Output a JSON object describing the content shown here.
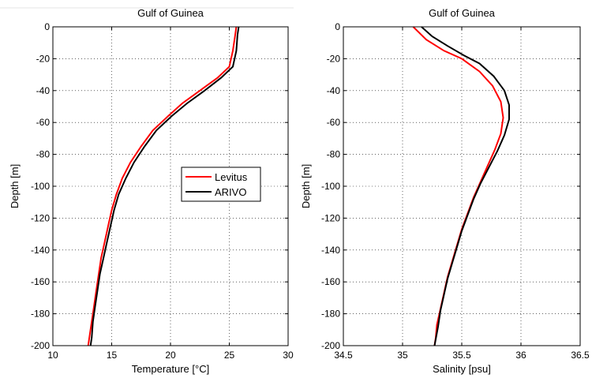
{
  "chart_data": [
    {
      "type": "line",
      "title": "Gulf of Guinea",
      "xlabel": "Temperature [°C]",
      "ylabel": "Depth [m]",
      "xlim": [
        10,
        30
      ],
      "ylim": [
        -200,
        0
      ],
      "xticks": [
        "10",
        "15",
        "20",
        "25",
        "30"
      ],
      "yticks": [
        "0",
        "-20",
        "-40",
        "-60",
        "-80",
        "-100",
        "-120",
        "-140",
        "-160",
        "-180",
        "-200"
      ],
      "grid": true,
      "legend": "center-right",
      "series": [
        {
          "name": "Levitus",
          "color": "#ff0000",
          "points": [
            [
              25.6,
              0
            ],
            [
              25.5,
              -5
            ],
            [
              25.3,
              -15
            ],
            [
              25.0,
              -25
            ],
            [
              24.0,
              -32
            ],
            [
              22.5,
              -40
            ],
            [
              21.0,
              -48
            ],
            [
              19.8,
              -56
            ],
            [
              18.5,
              -65
            ],
            [
              17.5,
              -75
            ],
            [
              16.6,
              -85
            ],
            [
              15.9,
              -95
            ],
            [
              15.4,
              -105
            ],
            [
              15.0,
              -115
            ],
            [
              14.7,
              -125
            ],
            [
              14.4,
              -135
            ],
            [
              14.1,
              -145
            ],
            [
              13.9,
              -155
            ],
            [
              13.7,
              -165
            ],
            [
              13.5,
              -175
            ],
            [
              13.3,
              -185
            ],
            [
              13.1,
              -195
            ],
            [
              13.0,
              -200
            ]
          ]
        },
        {
          "name": "ARIVO",
          "color": "#000000",
          "points": [
            [
              25.8,
              0
            ],
            [
              25.7,
              -5
            ],
            [
              25.6,
              -15
            ],
            [
              25.3,
              -25
            ],
            [
              24.3,
              -32
            ],
            [
              22.9,
              -40
            ],
            [
              21.4,
              -48
            ],
            [
              20.1,
              -56
            ],
            [
              18.8,
              -65
            ],
            [
              17.8,
              -75
            ],
            [
              16.9,
              -85
            ],
            [
              16.2,
              -95
            ],
            [
              15.6,
              -105
            ],
            [
              15.2,
              -115
            ],
            [
              14.9,
              -125
            ],
            [
              14.6,
              -135
            ],
            [
              14.3,
              -145
            ],
            [
              14.0,
              -155
            ],
            [
              13.8,
              -165
            ],
            [
              13.6,
              -175
            ],
            [
              13.4,
              -185
            ],
            [
              13.3,
              -195
            ],
            [
              13.2,
              -200
            ]
          ]
        }
      ]
    },
    {
      "type": "line",
      "title": "Gulf of Guinea",
      "xlabel": "Salinity [psu]",
      "ylabel": "Depth [m]",
      "xlim": [
        34.5,
        36.5
      ],
      "ylim": [
        -200,
        0
      ],
      "xticks": [
        "34.5",
        "35",
        "35.5",
        "36",
        "36.5"
      ],
      "yticks": [
        "0",
        "-20",
        "-40",
        "-60",
        "-80",
        "-100",
        "-120",
        "-140",
        "-160",
        "-180",
        "-200"
      ],
      "grid": true,
      "series": [
        {
          "name": "Levitus",
          "color": "#ff0000",
          "points": [
            [
              35.09,
              0
            ],
            [
              35.2,
              -8
            ],
            [
              35.35,
              -15
            ],
            [
              35.5,
              -20
            ],
            [
              35.65,
              -28
            ],
            [
              35.76,
              -37
            ],
            [
              35.83,
              -47
            ],
            [
              35.85,
              -57
            ],
            [
              35.83,
              -67
            ],
            [
              35.78,
              -77
            ],
            [
              35.72,
              -87
            ],
            [
              35.66,
              -97
            ],
            [
              35.6,
              -107
            ],
            [
              35.55,
              -117
            ],
            [
              35.5,
              -127
            ],
            [
              35.46,
              -137
            ],
            [
              35.42,
              -147
            ],
            [
              35.38,
              -157
            ],
            [
              35.35,
              -167
            ],
            [
              35.32,
              -177
            ],
            [
              35.29,
              -187
            ],
            [
              35.28,
              -195
            ],
            [
              35.27,
              -200
            ]
          ]
        },
        {
          "name": "ARIVO",
          "color": "#000000",
          "points": [
            [
              35.16,
              0
            ],
            [
              35.25,
              -6
            ],
            [
              35.38,
              -12
            ],
            [
              35.52,
              -18
            ],
            [
              35.65,
              -23
            ],
            [
              35.77,
              -31
            ],
            [
              35.86,
              -40
            ],
            [
              35.9,
              -49
            ],
            [
              35.9,
              -58
            ],
            [
              35.86,
              -68
            ],
            [
              35.8,
              -78
            ],
            [
              35.73,
              -88
            ],
            [
              35.66,
              -98
            ],
            [
              35.6,
              -108
            ],
            [
              35.55,
              -118
            ],
            [
              35.5,
              -128
            ],
            [
              35.46,
              -138
            ],
            [
              35.42,
              -148
            ],
            [
              35.38,
              -158
            ],
            [
              35.35,
              -168
            ],
            [
              35.32,
              -178
            ],
            [
              35.3,
              -188
            ],
            [
              35.28,
              -196
            ],
            [
              35.27,
              -200
            ]
          ]
        }
      ]
    }
  ]
}
